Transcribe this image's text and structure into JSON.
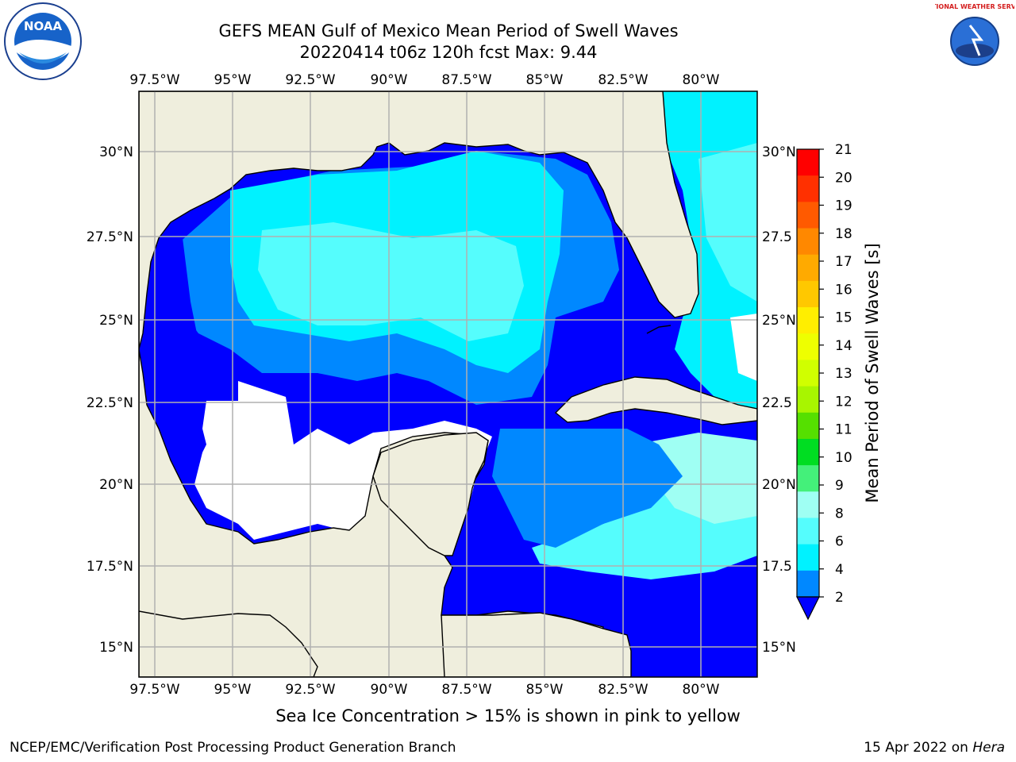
{
  "title": {
    "line1": "GEFS MEAN Gulf of Mexico Mean Period of Swell Waves",
    "line2": "20220414 t06z 120h fcst   Max: 9.44"
  },
  "logos": {
    "noaa_text": "NOAA",
    "nws_text": "NATIONAL WEATHER SERVICE"
  },
  "map": {
    "lon_labels": [
      "97.5°W",
      "95°W",
      "92.5°W",
      "90°W",
      "87.5°W",
      "85°W",
      "82.5°W",
      "80°W"
    ],
    "lat_labels_left": [
      "30°N",
      "27.5°N",
      "25°N",
      "22.5°N",
      "20°N",
      "17.5°N",
      "15°N"
    ],
    "lat_labels_right": [
      "30°N",
      "27.5",
      "25°N",
      "22.5",
      "20°N",
      "17.5",
      "15°N"
    ],
    "colors": {
      "land": "#efeedd",
      "mask": "#ffffff",
      "grid": "#b0b0b0"
    }
  },
  "colorbar": {
    "label": "Mean Period of Swell Waves [s]",
    "ticks": [
      "21",
      "20",
      "19",
      "18",
      "17",
      "16",
      "15",
      "14",
      "13",
      "12",
      "11",
      "10",
      "9",
      "8",
      "6",
      "4",
      "2"
    ],
    "colors_top_to_bottom": [
      "#ff0000",
      "#ff3000",
      "#ff5a00",
      "#ff8800",
      "#ffaa00",
      "#ffc800",
      "#ffee00",
      "#eeff00",
      "#d0ff00",
      "#a8f500",
      "#55e000",
      "#00dd22",
      "#44f07a",
      "#9ffff3",
      "#55fdfd",
      "#00f2ff",
      "#0088ff"
    ],
    "extend_color": "#0000ff"
  },
  "caption": "Sea Ice Concentration > 15% is shown in pink to yellow",
  "footer": {
    "left": "NCEP/EMC/Verification Post Processing Product Generation Branch",
    "date": "15 Apr 2022 on ",
    "machine": "Hera"
  }
}
